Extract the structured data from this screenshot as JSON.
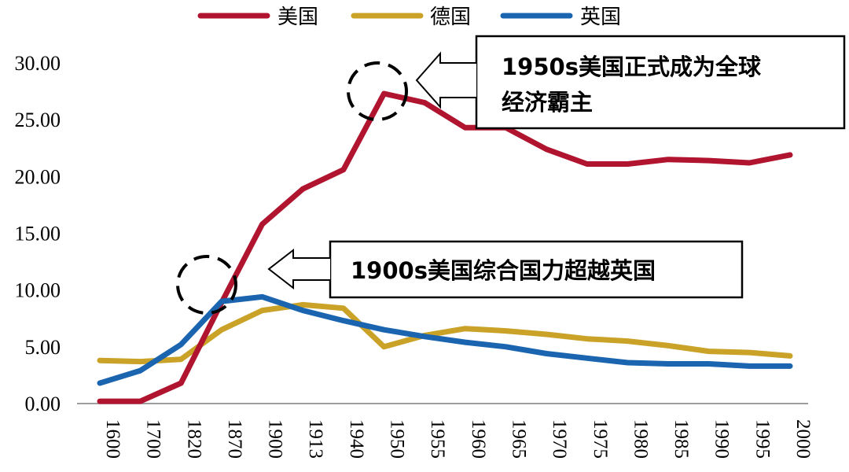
{
  "chart_data": {
    "type": "line",
    "categories": [
      "1600",
      "1700",
      "1820",
      "1870",
      "1900",
      "1913",
      "1940",
      "1950",
      "1955",
      "1960",
      "1965",
      "1970",
      "1975",
      "1980",
      "1985",
      "1990",
      "1995",
      "2000"
    ],
    "series": [
      {
        "name": "美国",
        "color": "#B0142E",
        "values": [
          0.2,
          0.2,
          1.8,
          8.9,
          15.8,
          18.9,
          20.6,
          27.3,
          26.5,
          24.3,
          24.3,
          22.4,
          21.1,
          21.1,
          21.5,
          21.4,
          21.2,
          21.9
        ]
      },
      {
        "name": "德国",
        "color": "#C9A227",
        "values": [
          3.8,
          3.7,
          3.9,
          6.5,
          8.2,
          8.7,
          8.4,
          5.0,
          6.0,
          6.6,
          6.4,
          6.1,
          5.7,
          5.5,
          5.1,
          4.6,
          4.5,
          4.2
        ]
      },
      {
        "name": "英国",
        "color": "#1A64B0",
        "values": [
          1.8,
          2.9,
          5.2,
          9.0,
          9.4,
          8.2,
          7.3,
          6.5,
          5.9,
          5.4,
          5.0,
          4.4,
          4.0,
          3.6,
          3.5,
          3.5,
          3.3,
          3.3
        ]
      }
    ],
    "ylim": [
      0,
      30
    ],
    "yticks": [
      "0.00",
      "5.00",
      "10.00",
      "15.00",
      "20.00",
      "25.00",
      "30.00"
    ],
    "grid": false,
    "legend": "top-center",
    "annotations": [
      {
        "text_lines": [
          "1950s美国正式成为全球",
          "经济霸主"
        ],
        "target_category": "1950",
        "target_value": 27.3
      },
      {
        "text_lines": [
          "1900s美国综合国力超越英国"
        ],
        "target_category": "1870",
        "target_value": 9.0
      }
    ]
  }
}
